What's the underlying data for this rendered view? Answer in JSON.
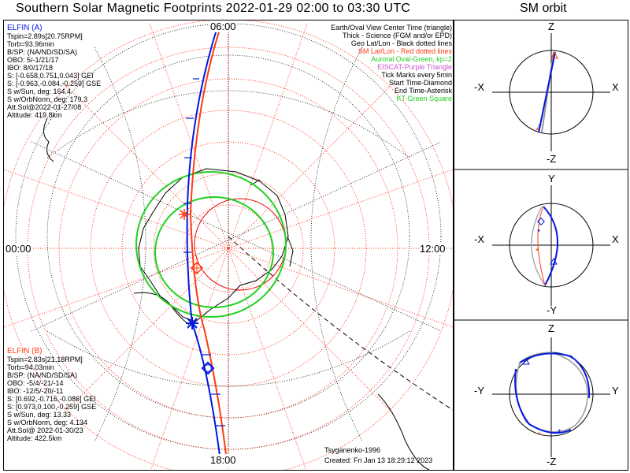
{
  "title": "Southern Solar Magnetic Footprints 2022-01-29 02:00 to 03:30 UTC",
  "orbit_title": "SM orbit",
  "map": {
    "clock_labels": {
      "top": "06:00",
      "bottom": "18:00",
      "left": "00:00",
      "right": "12:00"
    },
    "legend": [
      {
        "text": "Earth/Oval View Center Time (triangle)",
        "color": "#000000"
      },
      {
        "text": "Thick - Science (FGM and/or EPD)",
        "color": "#000000"
      },
      {
        "text": "Geo Lat/Lon - Black dotted lines",
        "color": "#000000"
      },
      {
        "text": "SM Lat/Lon - Red dotted lines",
        "color": "#ff2000"
      },
      {
        "text": "Auroral Oval-Green, kp=2",
        "color": "#20d020"
      },
      {
        "text": "EISCAT-Purple Triangle",
        "color": "#d050d0"
      },
      {
        "text": "Tick Marks every 5min",
        "color": "#000000"
      },
      {
        "text": "Start Time-Diamond",
        "color": "#000000"
      },
      {
        "text": "End Time-Asterisk",
        "color": "#000000"
      },
      {
        "text": "KT-Green Square",
        "color": "#20d020"
      }
    ],
    "elfin_a": {
      "name": "ELFIN (A)",
      "lines": [
        "Tspin=2.89s[20.75RPM]",
        "Torb=93.96min",
        "B/SP: (NA/ND/SD/SA)",
        "OBO: 5/-1/21/17",
        "IBO: 8/0/17/18",
        "S: [-0.658,0.751,0.043] GEI",
        "S: [-0.963,-0.084,-0.259] GSE",
        "S w/Sun, deg: 164.4",
        "S w/OrbNorm, deg: 179.3",
        "Att.Sol@2022-01-27/08",
        "Altitude: 419.8km"
      ]
    },
    "elfin_b": {
      "name": "ELFIN (B)",
      "lines": [
        "Tspin=2.83s[21.18RPM]",
        "Torb=94.03min",
        "B/SP: (NA/ND/SD/SA)",
        "OBO: -5/4/-21/-14",
        "IBO: -12/5/-20/-11",
        "S: [0.692,-0.716,-0.086] GEI",
        "S: [0.973,0.100,-0.259] GSE",
        "S w/Sun, deg: 13.33",
        "S w/OrbNorm, deg: 4.134",
        "Att.Sol@ 2022-01-30/23",
        "Altitude: 422.5km"
      ]
    },
    "credit": "Tsyganenko-1996",
    "created": "Created: Fri Jan 13 18:29:12 2023"
  },
  "panels": {
    "xz": {
      "top": "Z",
      "bottom": "-Z",
      "left": "-X",
      "right": "X"
    },
    "xy": {
      "top": "Y",
      "bottom": "-Y",
      "left": "-X",
      "right": "X"
    },
    "yz": {
      "top": "Z",
      "bottom": "-Z",
      "left": "-Y",
      "right": "Y"
    }
  },
  "colors": {
    "elfin_a": "#0018e0",
    "elfin_b": "#ff3b14",
    "oval": "#22d022",
    "grid_red": "#ff2000"
  }
}
